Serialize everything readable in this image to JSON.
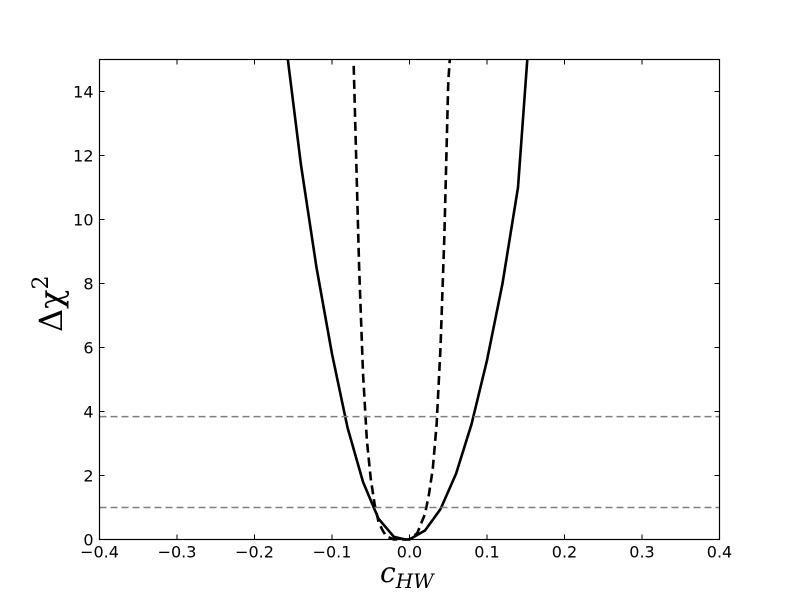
{
  "chart_data": {
    "type": "line",
    "title": "",
    "xlabel_main": "c",
    "xlabel_sub": "HW",
    "ylabel_main": "Δχ",
    "ylabel_sup": "2",
    "xlim": [
      -0.4,
      0.4
    ],
    "ylim": [
      0,
      15
    ],
    "xticks": [
      -0.4,
      -0.3,
      -0.2,
      -0.1,
      0.0,
      0.1,
      0.2,
      0.3,
      0.4
    ],
    "xtick_labels": [
      "−0.4",
      "−0.3",
      "−0.2",
      "−0.1",
      "0.0",
      "0.1",
      "0.2",
      "0.3",
      "0.4"
    ],
    "yticks": [
      0,
      2,
      4,
      6,
      8,
      10,
      12,
      14
    ],
    "ytick_labels": [
      "0",
      "2",
      "4",
      "6",
      "8",
      "10",
      "12",
      "14"
    ],
    "grid": false,
    "legend": "none",
    "series": [
      {
        "style": "solid",
        "color": "#000000",
        "x": [
          -0.157,
          -0.14,
          -0.12,
          -0.1,
          -0.08,
          -0.06,
          -0.04,
          -0.02,
          -0.005,
          0.0,
          0.02,
          0.04,
          0.06,
          0.08,
          0.1,
          0.12,
          0.14,
          0.152
        ],
        "y": [
          15.0,
          11.7,
          8.5,
          5.8,
          3.5,
          1.8,
          0.65,
          0.08,
          0.0,
          0.005,
          0.28,
          0.95,
          2.05,
          3.6,
          5.6,
          8.0,
          11.0,
          15.0
        ]
      },
      {
        "style": "dashed",
        "color": "#000000",
        "x": [
          -0.072,
          -0.065,
          -0.06,
          -0.055,
          -0.05,
          -0.045,
          -0.04,
          -0.035,
          -0.03,
          -0.02,
          -0.01,
          -0.005,
          0.0,
          0.01,
          0.02,
          0.025,
          0.03,
          0.035,
          0.04,
          0.045,
          0.05,
          0.052
        ],
        "y": [
          14.8,
          8.5,
          5.2,
          3.1,
          1.9,
          1.1,
          0.55,
          0.3,
          0.1,
          0.0,
          0.0,
          0.0,
          0.0,
          0.2,
          0.8,
          1.4,
          2.2,
          3.6,
          6.0,
          9.5,
          14.3,
          15.0
        ]
      },
      {
        "style": "dashed",
        "color": "#808080",
        "x": [
          -0.4,
          0.4
        ],
        "y": [
          3.84,
          3.84
        ]
      },
      {
        "style": "dashed",
        "color": "#808080",
        "x": [
          -0.4,
          0.4
        ],
        "y": [
          1.0,
          1.0
        ]
      }
    ]
  }
}
